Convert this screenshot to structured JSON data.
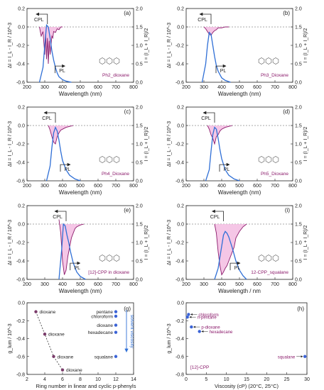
{
  "figure": {
    "colors": {
      "cpl": "#8b1a6b",
      "cpl_fill": "#f2b8e0",
      "pl": "#2f6fd6",
      "axis": "#222222",
      "dash": "#555555",
      "label_text": "#8b1a6b",
      "point_dark": "#7a3b6a",
      "point_blue": "#3b63d6"
    }
  },
  "chart_data": [
    {
      "type": "line",
      "panel": "(a)",
      "sample_label": "Ph2_dioxane",
      "xlabel": "Wavelength (nm)",
      "ylabel_left": "ΔI = I_L - I_R / 10^-3",
      "ylabel_right": "I = (I_L + I_R)/2",
      "xlim": [
        200,
        800
      ],
      "ylim_left": [
        -0.6,
        0.2
      ],
      "ylim_right": [
        0,
        2.0
      ],
      "xticks": [
        "200",
        "300",
        "400",
        "500",
        "600",
        "700",
        "800"
      ],
      "yticks_left": [
        "0.2",
        "0.0",
        "-0.2",
        "-0.4",
        "-0.6"
      ],
      "yticks_right": [
        "2.0",
        "1.5",
        "1.0",
        "0.5",
        "0.0"
      ],
      "annotations": [
        "CPL",
        "PL"
      ],
      "series": [
        {
          "name": "CPL",
          "axis": "left",
          "x": [
            270,
            280,
            290,
            300,
            305,
            310,
            315,
            320,
            325,
            330,
            335,
            340,
            345,
            350,
            360,
            370,
            380,
            390,
            400
          ],
          "y": [
            0.0,
            -0.1,
            -0.05,
            -0.3,
            -0.08,
            -0.35,
            -0.12,
            -0.4,
            -0.15,
            -0.3,
            -0.2,
            -0.1,
            -0.12,
            -0.05,
            -0.06,
            -0.02,
            -0.03,
            0.0,
            0.0
          ]
        },
        {
          "name": "PL",
          "axis": "right",
          "x": [
            270,
            290,
            300,
            310,
            320,
            330,
            340,
            350,
            360,
            370,
            380,
            400,
            420,
            450
          ],
          "y": [
            0.0,
            0.4,
            1.0,
            1.55,
            1.5,
            1.2,
            0.85,
            0.6,
            0.4,
            0.25,
            0.15,
            0.07,
            0.03,
            0.0
          ]
        }
      ]
    },
    {
      "type": "line",
      "panel": "(b)",
      "sample_label": "Ph3_Dioxane",
      "xlabel": "Wavelength (nm)",
      "ylabel_left": "ΔI = I_L - I_R / 10^-3",
      "ylabel_right": "I = (I_L + I_R)/2",
      "xlim": [
        200,
        800
      ],
      "ylim_left": [
        -0.6,
        0.2
      ],
      "ylim_right": [
        0,
        2.0
      ],
      "xticks": [
        "200",
        "300",
        "400",
        "500",
        "600",
        "700",
        "800"
      ],
      "yticks_left": [
        "0.2",
        "0.0",
        "-0.2",
        "-0.4",
        "-0.6"
      ],
      "yticks_right": [
        "2.0",
        "1.5",
        "1.0",
        "0.5",
        "0.0"
      ],
      "annotations": [
        "CPL",
        "PL"
      ],
      "series": [
        {
          "name": "CPL",
          "axis": "left",
          "x": [
            300,
            310,
            320,
            330,
            340,
            350,
            360,
            370,
            380,
            400,
            420,
            440
          ],
          "y": [
            0.0,
            -0.02,
            -0.05,
            -0.08,
            -0.09,
            -0.06,
            -0.04,
            -0.03,
            -0.01,
            -0.01,
            0.0,
            0.0
          ]
        },
        {
          "name": "PL",
          "axis": "right",
          "x": [
            290,
            310,
            320,
            330,
            340,
            350,
            360,
            370,
            380,
            400,
            420,
            450
          ],
          "y": [
            0.0,
            0.5,
            1.0,
            1.35,
            1.3,
            1.0,
            0.7,
            0.45,
            0.3,
            0.12,
            0.05,
            0.0
          ]
        }
      ]
    },
    {
      "type": "line",
      "panel": "(c)",
      "sample_label": "Ph4_Dioxane",
      "xlabel": "Wavelength (nm)",
      "ylabel_left": "ΔI = I_L - I_R / 10^-3",
      "ylabel_right": "I = (I_L + I_R)/2",
      "xlim": [
        200,
        800
      ],
      "ylim_left": [
        -0.6,
        0.2
      ],
      "ylim_right": [
        0,
        2.0
      ],
      "xticks": [
        "200",
        "300",
        "400",
        "500",
        "600",
        "700",
        "800"
      ],
      "yticks_left": [
        "0.2",
        "0.0",
        "-0.2",
        "-0.4",
        "-0.6"
      ],
      "yticks_right": [
        "2.0",
        "1.5",
        "1.0",
        "0.5",
        "0.0"
      ],
      "annotations": [
        "CPL",
        "PL"
      ],
      "series": [
        {
          "name": "CPL",
          "axis": "left",
          "x": [
            320,
            330,
            340,
            350,
            360,
            370,
            380,
            390,
            400,
            420,
            440,
            460
          ],
          "y": [
            0.0,
            -0.05,
            -0.12,
            -0.18,
            -0.2,
            -0.12,
            -0.08,
            -0.05,
            -0.04,
            -0.02,
            -0.01,
            0.0
          ]
        },
        {
          "name": "PL",
          "axis": "right",
          "x": [
            310,
            330,
            340,
            350,
            360,
            370,
            380,
            390,
            400,
            420,
            440,
            470,
            500
          ],
          "y": [
            0.0,
            0.4,
            0.9,
            1.3,
            1.45,
            1.35,
            1.1,
            0.8,
            0.55,
            0.3,
            0.15,
            0.05,
            0.0
          ]
        }
      ]
    },
    {
      "type": "line",
      "panel": "(d)",
      "sample_label": "Ph5_Dioxane",
      "xlabel": "Wavelength (nm)",
      "ylabel_left": "ΔI = I_L - I_R / 10^-3",
      "ylabel_right": "I = (I_L + I_R)/2",
      "xlim": [
        200,
        800
      ],
      "ylim_left": [
        -0.6,
        0.2
      ],
      "ylim_right": [
        0,
        2.0
      ],
      "xticks": [
        "200",
        "300",
        "400",
        "500",
        "600",
        "700",
        "800"
      ],
      "yticks_left": [
        "0.2",
        "0.0",
        "-0.2",
        "-0.4",
        "-0.6"
      ],
      "yticks_right": [
        "2.0",
        "1.5",
        "1.0",
        "0.5",
        "0.0"
      ],
      "annotations": [
        "CPL",
        "PL"
      ],
      "series": [
        {
          "name": "CPL",
          "axis": "left",
          "x": [
            320,
            330,
            340,
            350,
            360,
            370,
            380,
            390,
            400,
            420,
            440,
            460
          ],
          "y": [
            0.0,
            -0.04,
            -0.1,
            -0.14,
            -0.2,
            -0.12,
            -0.1,
            -0.06,
            -0.04,
            -0.02,
            -0.01,
            0.0
          ]
        },
        {
          "name": "PL",
          "axis": "right",
          "x": [
            310,
            330,
            340,
            350,
            360,
            370,
            380,
            390,
            400,
            420,
            440,
            470,
            500
          ],
          "y": [
            0.0,
            0.3,
            0.8,
            1.25,
            1.45,
            1.4,
            1.15,
            0.85,
            0.6,
            0.3,
            0.15,
            0.05,
            0.0
          ]
        }
      ]
    },
    {
      "type": "line",
      "panel": "(e)",
      "sample_label": "[12]-CPP in dioxane",
      "xlabel": "Wavelength (nm)",
      "ylabel_left": "ΔI = I_L - I_R / 10^-3",
      "ylabel_right": "I = (I_L + I_R)/2",
      "xlim": [
        200,
        800
      ],
      "ylim_left": [
        -0.6,
        0.2
      ],
      "ylim_right": [
        0,
        2.0
      ],
      "xticks": [
        "200",
        "300",
        "400",
        "500",
        "600",
        "700",
        "800"
      ],
      "yticks_left": [
        "0.2",
        "0.0",
        "-0.2",
        "-0.4",
        "-0.6"
      ],
      "yticks_right": [
        "2.0",
        "1.5",
        "1.0",
        "0.5",
        "0.0"
      ],
      "annotations": [
        "CPL",
        "PL"
      ],
      "series": [
        {
          "name": "CPL",
          "axis": "left",
          "x": [
            380,
            390,
            400,
            410,
            420,
            430,
            440,
            450,
            460,
            470,
            480,
            500,
            520
          ],
          "y": [
            0.05,
            -0.1,
            -0.4,
            -0.55,
            -0.5,
            -0.35,
            -0.25,
            -0.15,
            -0.1,
            -0.05,
            -0.03,
            -0.01,
            0.0
          ]
        },
        {
          "name": "PL",
          "axis": "right",
          "x": [
            380,
            395,
            405,
            415,
            425,
            435,
            445,
            460,
            480,
            500,
            530
          ],
          "y": [
            0.0,
            0.8,
            1.5,
            1.45,
            1.2,
            1.0,
            0.75,
            0.45,
            0.2,
            0.08,
            0.0
          ]
        }
      ]
    },
    {
      "type": "line",
      "panel": "(i)",
      "sample_label": "12-CPP_squalane",
      "xlabel": "Wavelength / nm",
      "ylabel_left": "ΔI = I_L - I_R / 10^-3",
      "ylabel_right": "I = (I_L + I_R)/2",
      "xlim": [
        200,
        800
      ],
      "ylim_left": [
        -0.6,
        0.2
      ],
      "ylim_right": [
        0,
        2.0
      ],
      "xticks": [
        "200",
        "300",
        "400",
        "500",
        "600",
        "700",
        "800"
      ],
      "yticks_left": [
        "0.2",
        "0.0",
        "-0.2",
        "-0.4",
        "-0.6"
      ],
      "yticks_right": [
        "2.0",
        "1.5",
        "1.0",
        "0.5",
        "0.0"
      ],
      "annotations": [
        "CPL",
        "PL"
      ],
      "series": [
        {
          "name": "CPL",
          "axis": "left",
          "x": [
            360,
            370,
            380,
            390,
            400,
            410,
            420,
            430,
            440,
            450,
            460,
            470,
            480,
            500,
            520,
            540
          ],
          "y": [
            0.0,
            -0.1,
            -0.3,
            -0.45,
            -0.55,
            -0.52,
            -0.48,
            -0.45,
            -0.4,
            -0.35,
            -0.3,
            -0.25,
            -0.15,
            -0.08,
            -0.03,
            0.0
          ]
        },
        {
          "name": "PL",
          "axis": "right",
          "x": [
            360,
            380,
            400,
            410,
            420,
            430,
            440,
            460,
            480,
            500,
            520,
            540
          ],
          "y": [
            0.0,
            0.3,
            0.9,
            1.2,
            1.3,
            1.25,
            1.15,
            0.85,
            0.5,
            0.25,
            0.1,
            0.0
          ]
        }
      ]
    },
    {
      "type": "scatter",
      "panel": "(g)",
      "xlabel": "Ring number in linear and cyclic p-phenyls",
      "ylabel": "g_lum / 10^-3",
      "xlim": [
        2,
        14
      ],
      "ylim": [
        -0.8,
        0.0
      ],
      "xticks": [
        "2",
        "4",
        "6",
        "8",
        "10",
        "12",
        "14"
      ],
      "yticks": [
        "0.0",
        "-0.2",
        "-0.4",
        "-0.6",
        "-0.8"
      ],
      "arrow_label": "solvent viscosity",
      "points_linear": [
        {
          "x": 3,
          "y": -0.1,
          "label": "dioxane"
        },
        {
          "x": 4,
          "y": -0.35,
          "label": "dioxane"
        },
        {
          "x": 5,
          "y": -0.6,
          "label": "dioxane"
        },
        {
          "x": 6,
          "y": -0.75,
          "label": "dioxane"
        }
      ],
      "points_cpp": [
        {
          "x": 12,
          "y": -0.1,
          "label": "pentane"
        },
        {
          "x": 12,
          "y": -0.15,
          "label": "chloroform"
        },
        {
          "x": 12,
          "y": -0.25,
          "label": "dioxane"
        },
        {
          "x": 12,
          "y": -0.33,
          "label": "hexadecane"
        },
        {
          "x": 12,
          "y": -0.6,
          "label": "squalane"
        }
      ]
    },
    {
      "type": "scatter",
      "panel": "(h)",
      "xlabel": "Viscosity (cP) (20°C, 25°C)",
      "ylabel": "g_lum / 10^-3",
      "xlim": [
        0,
        30
      ],
      "ylim": [
        -0.8,
        0.0
      ],
      "xticks": [
        "0",
        "5",
        "10",
        "15",
        "20",
        "25",
        "30"
      ],
      "yticks": [
        "0.0",
        "-0.2",
        "-0.4",
        "-0.6",
        "-0.8"
      ],
      "compound_label": "[12]-CPP",
      "points": [
        {
          "x": 0.6,
          "y": -0.13,
          "label": "chloroform"
        },
        {
          "x": 0.3,
          "y": -0.16,
          "label": "n-pentane"
        },
        {
          "x": 1.3,
          "y": -0.27,
          "label": "p-dioxane"
        },
        {
          "x": 3.3,
          "y": -0.32,
          "label": "hexadecane"
        },
        {
          "x": 29.5,
          "y": -0.6,
          "label": "squalane"
        }
      ]
    }
  ]
}
